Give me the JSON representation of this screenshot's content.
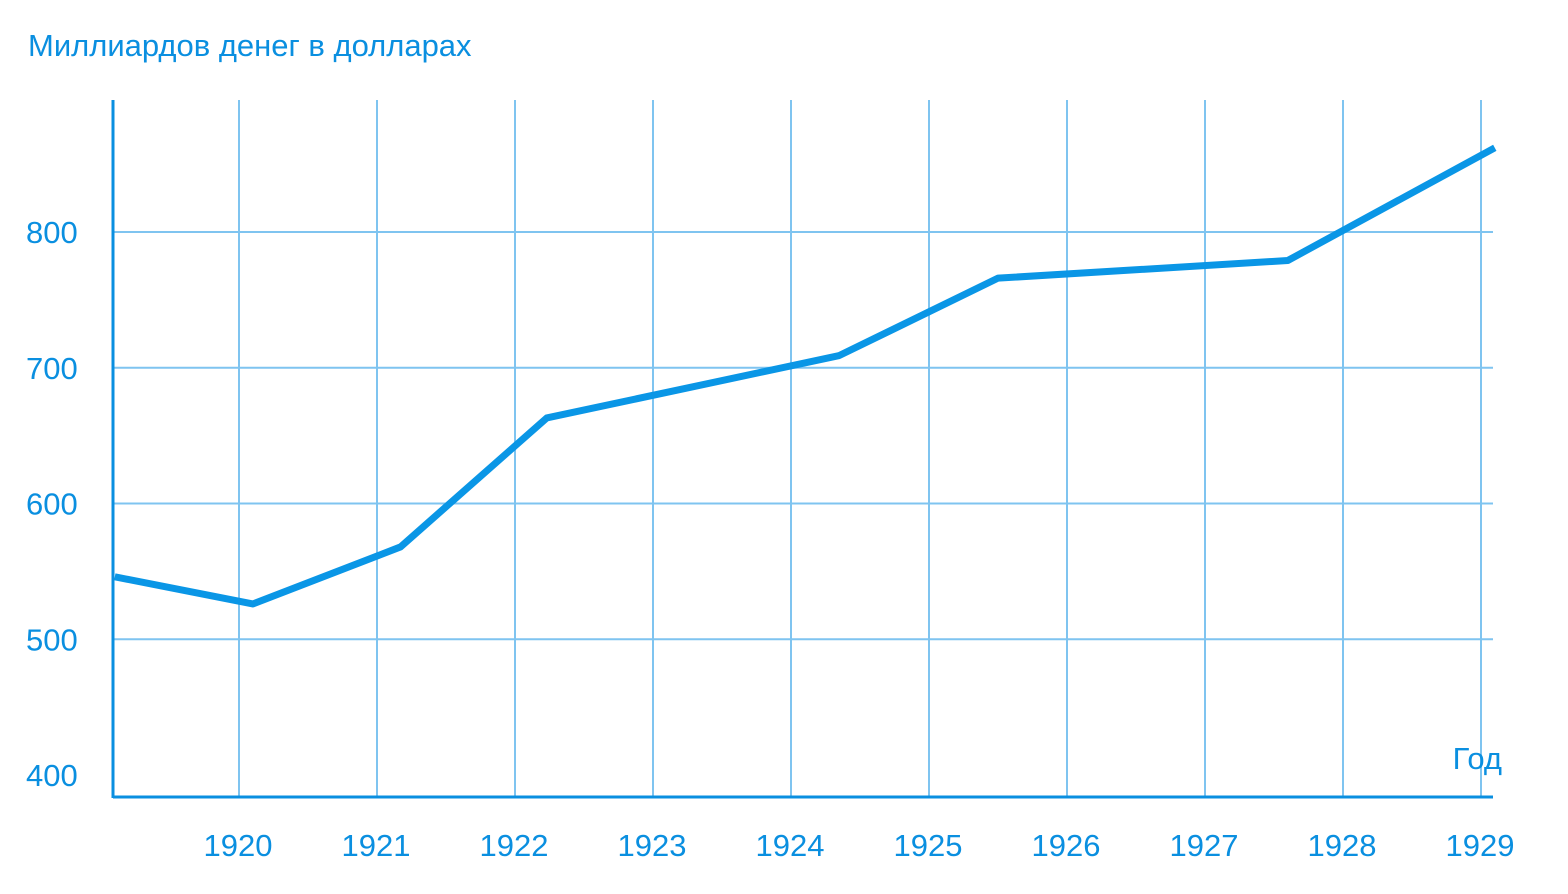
{
  "colors": {
    "line": "#0a96e6",
    "grid": "#7fc4f0",
    "axis": "#0a8fe0",
    "text": "#0a8fe0"
  },
  "chart_data": {
    "type": "line",
    "title": "",
    "ylabel": "Миллиардов денег в долларах",
    "xlabel": "Год",
    "x_ticks": [
      "1920",
      "1921",
      "1922",
      "1923",
      "1924",
      "1925",
      "1926",
      "1927",
      "1928",
      "1929"
    ],
    "y_ticks": [
      "400",
      "500",
      "600",
      "700",
      "800"
    ],
    "xlim": [
      1919.1,
      1929.1
    ],
    "ylim": [
      375,
      862
    ],
    "grid": true,
    "series": [
      {
        "x": [
          1919.1,
          1920.1,
          1921.17,
          1922.23,
          1924.35,
          1925.5,
          1927.6,
          1929.1
        ],
        "values": [
          546,
          526,
          568,
          663,
          709,
          766,
          779,
          862
        ]
      }
    ]
  }
}
